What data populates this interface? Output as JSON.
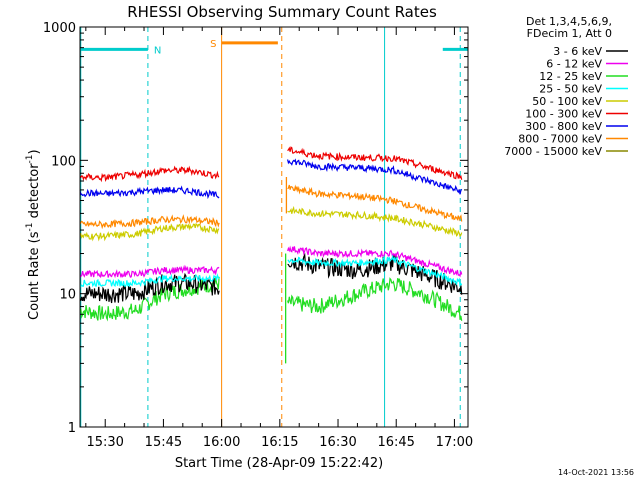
{
  "chart_data": {
    "type": "line",
    "title": "RHESSI Observing Summary Count Rates",
    "xlabel": "Start Time (28-Apr-09 15:22:42)",
    "ylabel_main": "Count Rate (s",
    "ylabel_sup1": "-1",
    "ylabel_mid": " detector",
    "ylabel_sup2": "-1",
    "ylabel_end": ")",
    "yscale": "log",
    "ylim": [
      1,
      1000
    ],
    "xlim_minutes": [
      923.5,
      1023.5
    ],
    "x_ticks": [
      {
        "label": "15:30",
        "minutes": 930
      },
      {
        "label": "15:45",
        "minutes": 945
      },
      {
        "label": "16:00",
        "minutes": 960
      },
      {
        "label": "16:15",
        "minutes": 975
      },
      {
        "label": "16:30",
        "minutes": 990
      },
      {
        "label": "16:45",
        "minutes": 1005
      },
      {
        "label": "17:00",
        "minutes": 1020
      }
    ],
    "y_ticks": [
      {
        "label": "1",
        "value": 1
      },
      {
        "label": "10",
        "value": 10
      },
      {
        "label": "100",
        "value": 100
      },
      {
        "label": "1000",
        "value": 1000
      }
    ],
    "legend_header": [
      "Det 1,3,4,5,6,9,",
      "FDecim 1, Att 0"
    ],
    "series": [
      {
        "name": "3 - 6 keV",
        "color": "#000000",
        "seg1": [
          [
            923.5,
            10
          ],
          [
            930,
            10
          ],
          [
            938,
            10
          ],
          [
            945,
            12
          ],
          [
            952,
            12
          ],
          [
            959.5,
            11
          ]
        ],
        "seg2": [
          [
            977,
            18
          ],
          [
            985,
            16
          ],
          [
            995,
            15
          ],
          [
            1004,
            17
          ],
          [
            1012,
            14
          ],
          [
            1022,
            11
          ]
        ]
      },
      {
        "name": "6 - 12 keV",
        "color": "#ee00ee",
        "seg1": [
          [
            923.5,
            14
          ],
          [
            930,
            14
          ],
          [
            938,
            14
          ],
          [
            945,
            15
          ],
          [
            952,
            15
          ],
          [
            959.5,
            15
          ]
        ],
        "seg2": [
          [
            977,
            22
          ],
          [
            985,
            20
          ],
          [
            995,
            20
          ],
          [
            1004,
            20
          ],
          [
            1012,
            17
          ],
          [
            1022,
            14
          ]
        ]
      },
      {
        "name": "12 - 25 keV",
        "color": "#22dd22",
        "seg1": [
          [
            923.5,
            7.5
          ],
          [
            930,
            7
          ],
          [
            938,
            7.5
          ],
          [
            945,
            10
          ],
          [
            952,
            11
          ],
          [
            959.5,
            12
          ]
        ],
        "seg2": [
          [
            977,
            8.5
          ],
          [
            985,
            8
          ],
          [
            995,
            10
          ],
          [
            1004,
            12
          ],
          [
            1012,
            10
          ],
          [
            1022,
            7
          ]
        ]
      },
      {
        "name": "25 - 50 keV",
        "color": "#00ffff",
        "seg1": [
          [
            923.5,
            12
          ],
          [
            930,
            12
          ],
          [
            938,
            12
          ],
          [
            945,
            13
          ],
          [
            952,
            13
          ],
          [
            959.5,
            13
          ]
        ],
        "seg2": [
          [
            977,
            18
          ],
          [
            985,
            17
          ],
          [
            995,
            17
          ],
          [
            1004,
            18
          ],
          [
            1012,
            15
          ],
          [
            1022,
            12
          ]
        ]
      },
      {
        "name": "50 - 100 keV",
        "color": "#cccc00",
        "seg1": [
          [
            923.5,
            27
          ],
          [
            930,
            27
          ],
          [
            938,
            28
          ],
          [
            945,
            31
          ],
          [
            952,
            32
          ],
          [
            959.5,
            30
          ]
        ],
        "seg2": [
          [
            977,
            42
          ],
          [
            985,
            40
          ],
          [
            995,
            39
          ],
          [
            1004,
            37
          ],
          [
            1012,
            33
          ],
          [
            1022,
            28
          ]
        ]
      },
      {
        "name": "100 - 300 keV",
        "color": "#ee0000",
        "seg1": [
          [
            923.5,
            75
          ],
          [
            930,
            74
          ],
          [
            938,
            78
          ],
          [
            945,
            84
          ],
          [
            952,
            84
          ],
          [
            959.5,
            76
          ]
        ],
        "seg2": [
          [
            977,
            120
          ],
          [
            985,
            108
          ],
          [
            995,
            105
          ],
          [
            1004,
            104
          ],
          [
            1012,
            90
          ],
          [
            1022,
            75
          ]
        ]
      },
      {
        "name": "300 - 800 keV",
        "color": "#0000ee",
        "seg1": [
          [
            923.5,
            57
          ],
          [
            930,
            56
          ],
          [
            938,
            58
          ],
          [
            945,
            60
          ],
          [
            952,
            59
          ],
          [
            959.5,
            54
          ]
        ],
        "seg2": [
          [
            977,
            100
          ],
          [
            985,
            90
          ],
          [
            995,
            88
          ],
          [
            1004,
            85
          ],
          [
            1012,
            72
          ],
          [
            1022,
            58
          ]
        ]
      },
      {
        "name": "800 - 7000 keV",
        "color": "#ff8800",
        "seg1": [
          [
            923.5,
            33
          ],
          [
            930,
            33
          ],
          [
            938,
            34
          ],
          [
            945,
            36
          ],
          [
            952,
            36
          ],
          [
            959.5,
            34
          ]
        ],
        "seg2": [
          [
            977,
            62
          ],
          [
            985,
            56
          ],
          [
            995,
            54
          ],
          [
            1004,
            50
          ],
          [
            1012,
            43
          ],
          [
            1022,
            36
          ]
        ]
      },
      {
        "name": "7000 - 15000 keV",
        "color": "#888800",
        "seg1": [],
        "seg2": []
      }
    ],
    "flags": [
      {
        "label": "N",
        "color": "#00cccc",
        "level": 680,
        "ranges": [
          [
            923.5,
            941
          ],
          [
            1017,
            1023.5
          ]
        ],
        "label_minutes": 941.5
      },
      {
        "label": "S",
        "color": "#ff8800",
        "level": 760,
        "ranges": [
          [
            960,
            974.5
          ]
        ],
        "label_minutes": 956
      }
    ],
    "markers": [
      {
        "color": "#00cccc",
        "style": "dashed",
        "minutes": 941
      },
      {
        "color": "#00cccc",
        "style": "solid",
        "minutes": 1002
      },
      {
        "color": "#00cccc",
        "style": "dashed",
        "minutes": 1021.5
      },
      {
        "color": "#ff8800",
        "style": "solid",
        "minutes": 960
      },
      {
        "color": "#ff8800",
        "style": "dashed",
        "minutes": 975.5
      },
      {
        "color": "#00cccc",
        "style": "solid",
        "minutes": 923.7
      }
    ],
    "spikes": [
      {
        "color": "#22dd22",
        "minutes": 976.5,
        "from": 3,
        "to": 20
      },
      {
        "color": "#ff8800",
        "minutes": 976.7,
        "from": 40,
        "to": 75
      }
    ],
    "footer": "14-Oct-2021 13:56"
  }
}
